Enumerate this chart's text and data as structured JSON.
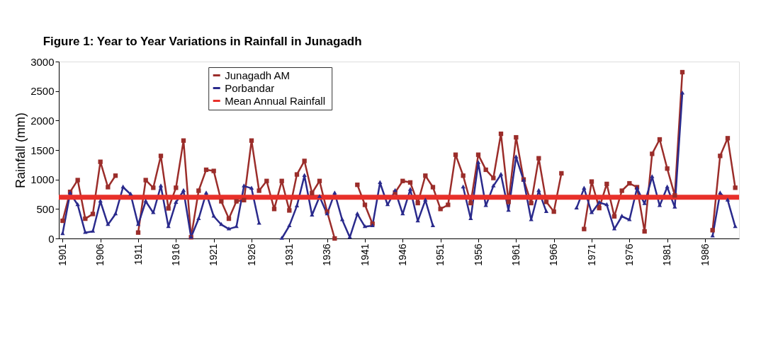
{
  "chart_data": {
    "type": "line",
    "title": "Figure 1: Year to Year Variations in Rainfall in Junagadh",
    "ylabel": "Rainfall (mm)",
    "x": [
      1901,
      1902,
      1903,
      1904,
      1905,
      1906,
      1907,
      1908,
      1909,
      1910,
      1911,
      1912,
      1913,
      1914,
      1915,
      1916,
      1917,
      1918,
      1919,
      1920,
      1921,
      1922,
      1923,
      1924,
      1925,
      1926,
      1927,
      1928,
      1929,
      1930,
      1931,
      1932,
      1933,
      1934,
      1935,
      1936,
      1937,
      1938,
      1939,
      1940,
      1941,
      1942,
      1943,
      1944,
      1945,
      1946,
      1947,
      1948,
      1949,
      1950,
      1951,
      1952,
      1953,
      1954,
      1955,
      1956,
      1957,
      1958,
      1959,
      1960,
      1961,
      1962,
      1963,
      1964,
      1965,
      1966,
      1967,
      1968,
      1969,
      1970,
      1971,
      1972,
      1973,
      1974,
      1975,
      1976,
      1977,
      1978,
      1979,
      1980,
      1981,
      1982,
      1983,
      1984,
      1985,
      1986,
      1987,
      1988,
      1989,
      1990
    ],
    "series": [
      {
        "name": "Junagadh AM",
        "color": "#9b2d2a",
        "marker": "square",
        "values": [
          300,
          790,
          990,
          335,
          415,
          1300,
          870,
          1065,
          null,
          null,
          100,
          990,
          860,
          1400,
          510,
          860,
          1660,
          20,
          810,
          1165,
          1145,
          630,
          335,
          630,
          650,
          1660,
          810,
          975,
          500,
          975,
          475,
          1085,
          1315,
          770,
          975,
          455,
          0,
          null,
          null,
          910,
          570,
          250,
          null,
          null,
          780,
          975,
          950,
          600,
          1065,
          870,
          500,
          570,
          1420,
          1065,
          600,
          1420,
          1165,
          1025,
          1775,
          620,
          1715,
          1000,
          600,
          1360,
          620,
          455,
          1105,
          null,
          null,
          160,
          965,
          515,
          925,
          375,
          810,
          935,
          870,
          120,
          1435,
          1680,
          1185,
          730,
          2820,
          null,
          null,
          null,
          140,
          1400,
          1700,
          860
        ]
      },
      {
        "name": "Porbandar",
        "color": "#2a2a8c",
        "marker": "triangle",
        "values": [
          80,
          770,
          570,
          100,
          120,
          630,
          235,
          415,
          870,
          750,
          235,
          630,
          435,
          890,
          200,
          610,
          810,
          20,
          335,
          770,
          375,
          235,
          160,
          200,
          890,
          850,
          255,
          null,
          null,
          0,
          215,
          550,
          1065,
          395,
          710,
          415,
          770,
          315,
          20,
          415,
          200,
          215,
          945,
          570,
          810,
          415,
          830,
          295,
          650,
          215,
          null,
          null,
          null,
          870,
          335,
          1285,
          555,
          890,
          1085,
          475,
          1380,
          985,
          315,
          810,
          455,
          null,
          null,
          null,
          515,
          850,
          435,
          610,
          570,
          160,
          375,
          315,
          850,
          590,
          1045,
          555,
          870,
          530,
          2465,
          null,
          null,
          null,
          40,
          770,
          650,
          200
        ]
      }
    ],
    "ref_lines": [
      {
        "axis": "y",
        "value": 700,
        "label": "Mean Annual  Rainfall",
        "color": "#e8302a"
      }
    ],
    "xlim": [
      1900.5,
      1990.5
    ],
    "xticks": [
      1901,
      1906,
      1911,
      1916,
      1921,
      1926,
      1931,
      1936,
      1941,
      1946,
      1951,
      1956,
      1961,
      1966,
      1971,
      1976,
      1981,
      1986
    ],
    "ylim": [
      0,
      3000
    ],
    "yticks": [
      0,
      500,
      1000,
      1500,
      2000,
      2500,
      3000
    ],
    "grid": false,
    "legend": "top"
  }
}
